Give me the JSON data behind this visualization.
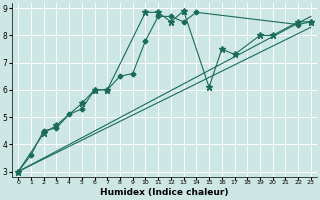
{
  "xlabel": "Humidex (Indice chaleur)",
  "xlim": [
    -0.5,
    23.5
  ],
  "ylim": [
    2.8,
    9.2
  ],
  "xticks": [
    0,
    1,
    2,
    3,
    4,
    5,
    6,
    7,
    8,
    9,
    10,
    11,
    12,
    13,
    14,
    15,
    16,
    17,
    18,
    19,
    20,
    21,
    22,
    23
  ],
  "yticks": [
    3,
    4,
    5,
    6,
    7,
    8,
    9
  ],
  "bg_color": "#cde8e4",
  "line_color": "#1a6b5a",
  "grid_color": "#ffffff",
  "line_diamond": {
    "x": [
      0,
      1,
      2,
      3,
      4,
      5,
      6,
      7,
      8,
      9,
      10,
      11,
      12,
      13,
      14,
      22,
      23
    ],
    "y": [
      3.0,
      3.6,
      4.5,
      4.6,
      5.1,
      5.3,
      6.0,
      6.0,
      6.5,
      6.6,
      7.8,
      8.7,
      8.7,
      8.5,
      8.85,
      8.4,
      8.5
    ]
  },
  "line_star": {
    "x": [
      0,
      2,
      3,
      5,
      6,
      7,
      10,
      11,
      12,
      13,
      15,
      16,
      17,
      19,
      20,
      22,
      23
    ],
    "y": [
      3.0,
      4.4,
      4.7,
      5.5,
      6.0,
      6.0,
      8.85,
      8.85,
      8.5,
      8.9,
      6.1,
      7.5,
      7.3,
      8.0,
      8.0,
      8.5,
      8.5
    ]
  },
  "line_straight1": {
    "x": [
      0,
      23
    ],
    "y": [
      3.0,
      8.3
    ]
  },
  "line_straight2": {
    "x": [
      0,
      23
    ],
    "y": [
      3.0,
      8.7
    ]
  }
}
